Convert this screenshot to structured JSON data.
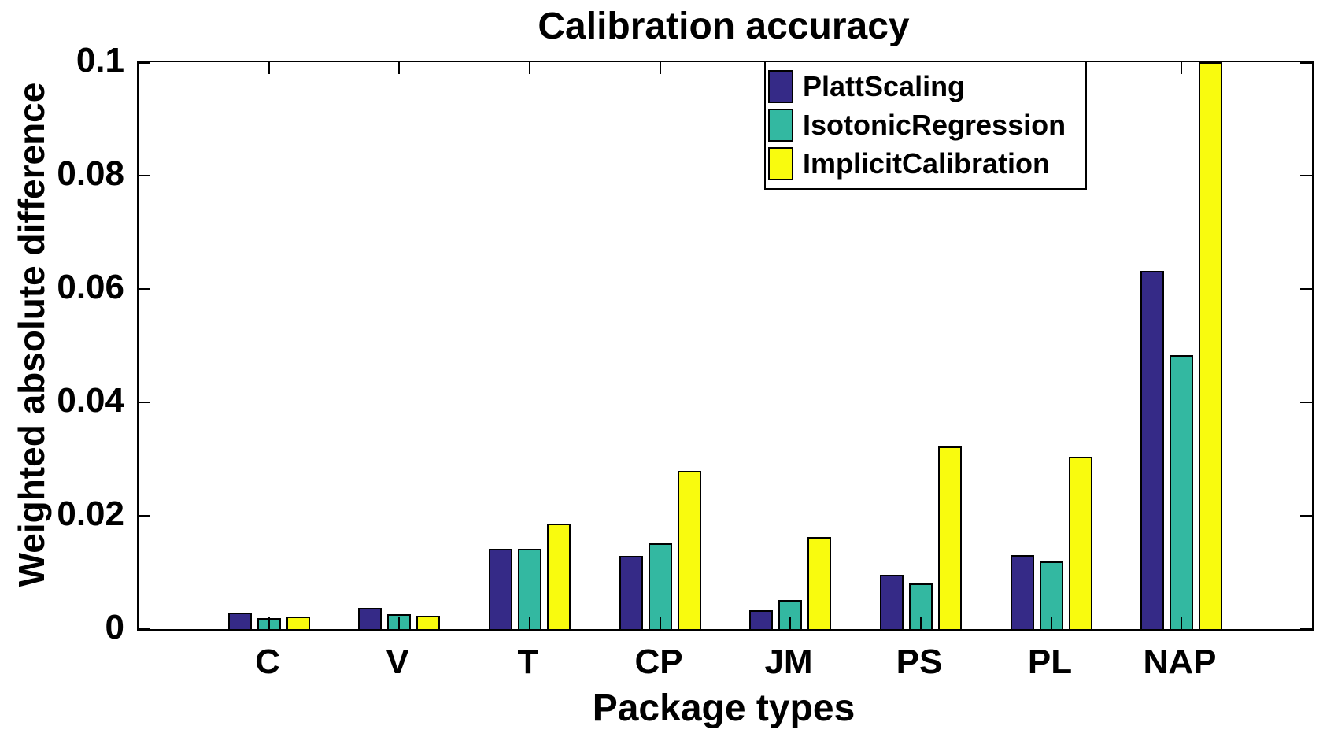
{
  "title": "Calibration accuracy",
  "axes": {
    "xlabel": "Package types",
    "ylabel": "Weighted absolute difference",
    "ytick_labels": [
      "0",
      "0.02",
      "0.04",
      "0.06",
      "0.08",
      "0.1"
    ]
  },
  "colors": {
    "background": "#FFFFFF",
    "axis": "#000000",
    "bar_edge": "#000000",
    "text": "#000000"
  },
  "chart_data": {
    "type": "bar",
    "title": "Calibration accuracy",
    "xlabel": "Package types",
    "ylabel": "Weighted absolute difference",
    "categories": [
      "C",
      "V",
      "T",
      "CP",
      "JM",
      "PS",
      "PL",
      "NAP"
    ],
    "series": [
      {
        "name": "PlattScaling",
        "color": "#352A87",
        "values": [
          0.0029,
          0.0037,
          0.0141,
          0.0129,
          0.0033,
          0.0096,
          0.0131,
          0.0632
        ]
      },
      {
        "name": "IsotonicRegression",
        "color": "#33B8A1",
        "values": [
          0.002,
          0.0026,
          0.0141,
          0.0151,
          0.0052,
          0.0081,
          0.012,
          0.0483
        ]
      },
      {
        "name": "ImplicitCalibration",
        "color": "#F9FB0E",
        "values": [
          0.0022,
          0.0023,
          0.0186,
          0.0279,
          0.0162,
          0.0322,
          0.0304,
          0.1
        ]
      }
    ],
    "ylim": [
      0,
      0.1
    ],
    "yticks": [
      0,
      0.02,
      0.04,
      0.06,
      0.08,
      0.1
    ],
    "grid": false,
    "legend_position": "northeast-inside",
    "annotations": [
      "NAP ImplicitCalibration bar reaches the axis top (>= 0.1, clipped)"
    ]
  }
}
